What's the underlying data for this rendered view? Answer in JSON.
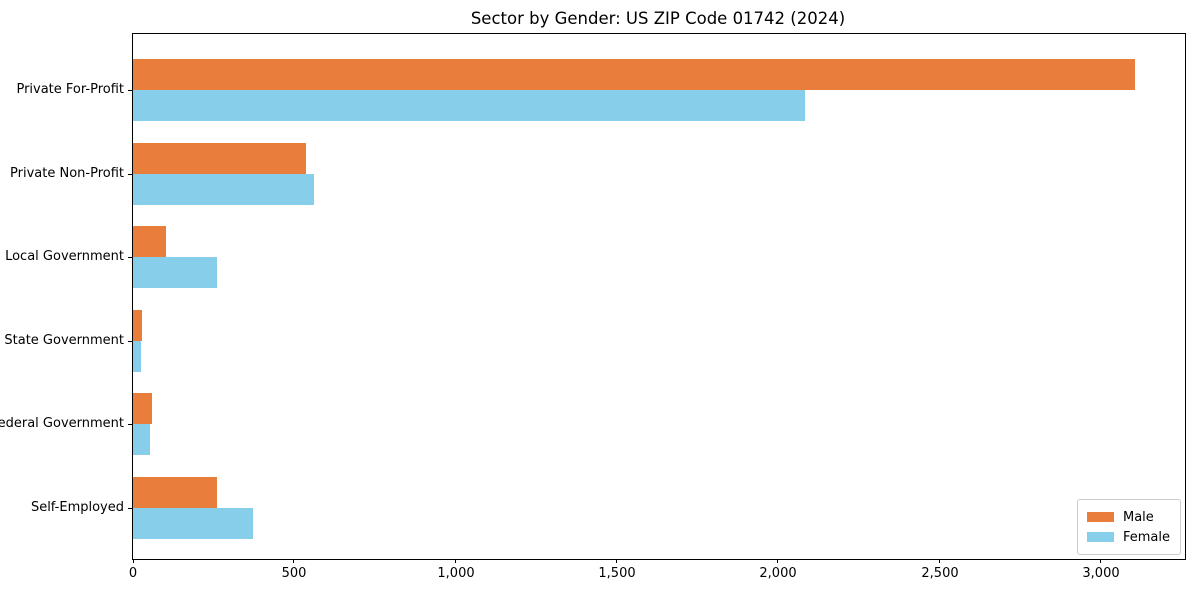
{
  "title": "Sector by Gender: US ZIP Code 01742 (2024)",
  "chart_data": {
    "type": "bar",
    "orientation": "horizontal",
    "title": "Sector by Gender: US ZIP Code 01742 (2024)",
    "xlabel": "",
    "ylabel": "",
    "categories": [
      "Private For-Profit",
      "Private Non-Profit",
      "Local Government",
      "State Government",
      "Federal Government",
      "Self-Employed"
    ],
    "series": [
      {
        "name": "Male",
        "color": "#e87d3c",
        "values": [
          3105,
          536,
          102,
          28,
          59,
          260
        ]
      },
      {
        "name": "Female",
        "color": "#87ceeb",
        "values": [
          2083,
          560,
          260,
          26,
          53,
          373
        ]
      }
    ],
    "xlim": [
      0,
      3260
    ],
    "xticks": [
      0,
      500,
      1000,
      1500,
      2000,
      2500,
      3000
    ],
    "xtick_labels": [
      "0",
      "500",
      "1,000",
      "1,500",
      "2,000",
      "2,500",
      "3,000"
    ],
    "grid": false,
    "legend": {
      "position": "lower right",
      "entries": [
        "Male",
        "Female"
      ]
    }
  }
}
